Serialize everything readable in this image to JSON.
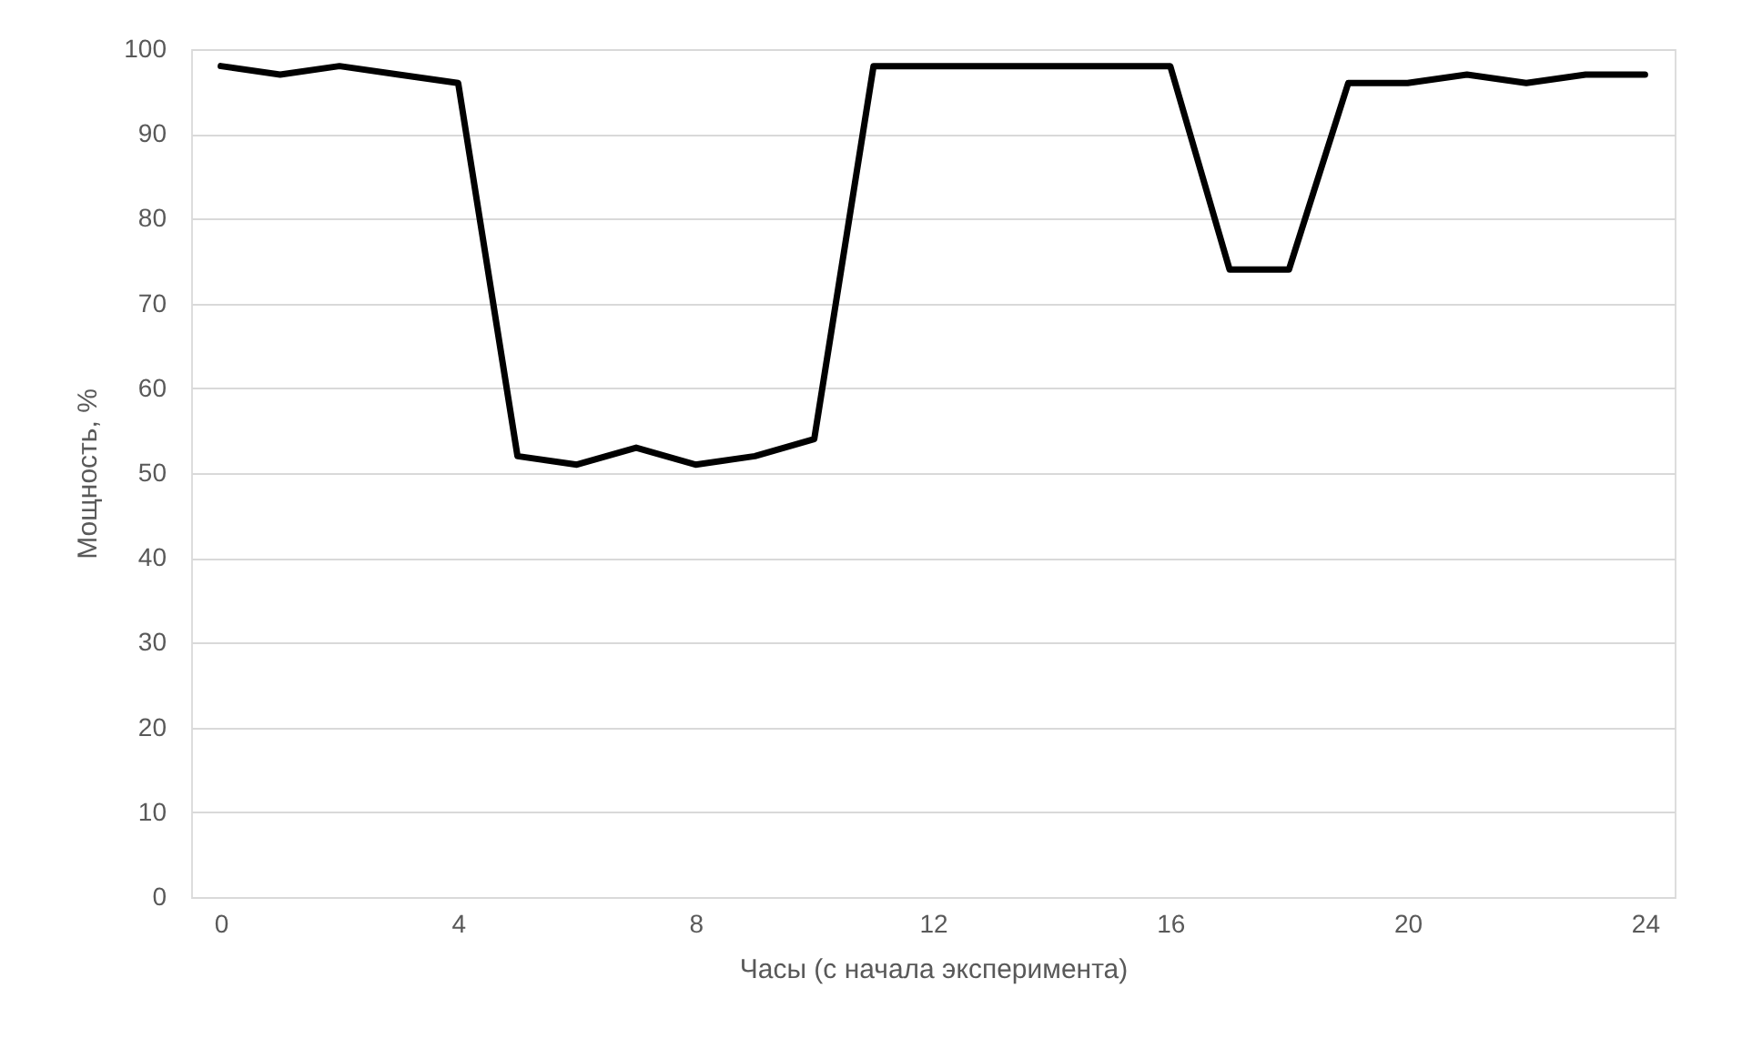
{
  "chart_data": {
    "type": "line",
    "xlabel": "Часы (с начала эксперимента)",
    "ylabel": "Мощность, %",
    "x": [
      0,
      1,
      2,
      3,
      4,
      5,
      6,
      7,
      8,
      9,
      10,
      11,
      12,
      13,
      14,
      15,
      16,
      17,
      18,
      19,
      20,
      21,
      22,
      23,
      24
    ],
    "series": [
      {
        "color": "#000000",
        "values": [
          98,
          97,
          98,
          97,
          96,
          52,
          51,
          53,
          51,
          52,
          54,
          98,
          98,
          98,
          98,
          98,
          98,
          74,
          74,
          96,
          96,
          97,
          96,
          97,
          97
        ]
      }
    ],
    "xlim": [
      -0.5,
      24.5
    ],
    "xticks": [
      0,
      4,
      8,
      12,
      16,
      20,
      24
    ],
    "ylim": [
      0,
      100
    ],
    "yticks": [
      0,
      10,
      20,
      30,
      40,
      50,
      60,
      70,
      80,
      90,
      100
    ],
    "grid": "y",
    "marker": "none",
    "line_style": "solid"
  }
}
